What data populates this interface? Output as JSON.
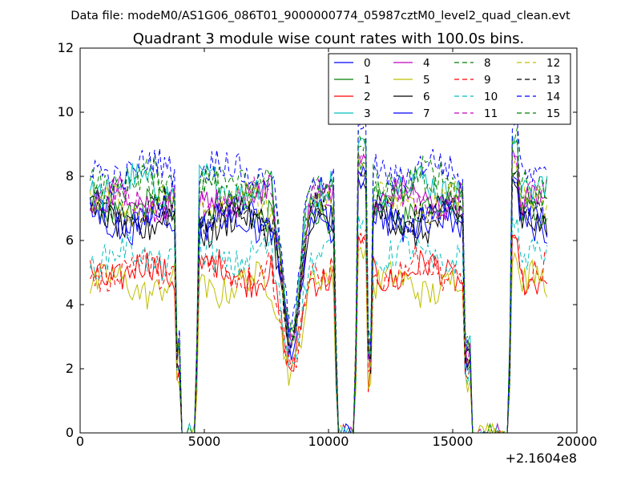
{
  "chart_data": {
    "type": "line",
    "suptitle": "Data file: modeM0/AS1G06_086T01_9000000774_05987cztM0_level2_quad_clean.evt",
    "title": "Quadrant 3 module wise count rates with 100.0s bins.",
    "xlabel": "",
    "ylabel": "",
    "x_offset_label": "+2.1604e8",
    "xlim": [
      0,
      20000
    ],
    "ylim": [
      0,
      12
    ],
    "x_ticks": [
      0,
      5000,
      10000,
      15000,
      20000
    ],
    "y_ticks": [
      0,
      2,
      4,
      6,
      8,
      10,
      12
    ],
    "grid": false,
    "legend": {
      "placement": "top-right",
      "columns": 4
    },
    "x_range_of_data": [
      400,
      18800
    ],
    "segments": [
      {
        "from": 400,
        "to": 3800,
        "level": "on"
      },
      {
        "from": 4100,
        "to": 4600,
        "level": "off"
      },
      {
        "from": 4800,
        "to": 7700,
        "level": "on"
      },
      {
        "from": 7800,
        "to": 9200,
        "level": "dip"
      },
      {
        "from": 9300,
        "to": 10200,
        "level": "on"
      },
      {
        "from": 10400,
        "to": 11000,
        "level": "off"
      },
      {
        "from": 11200,
        "to": 11500,
        "level": "spike"
      },
      {
        "from": 11800,
        "to": 15400,
        "level": "on"
      },
      {
        "from": 15800,
        "to": 17200,
        "level": "off"
      },
      {
        "from": 17400,
        "to": 17600,
        "level": "spike"
      },
      {
        "from": 17700,
        "to": 18800,
        "level": "on"
      }
    ],
    "series": [
      {
        "name": "0",
        "color": "#0000ff",
        "dash": "solid",
        "level": 6.8
      },
      {
        "name": "1",
        "color": "#008000",
        "dash": "solid",
        "level": 7.0
      },
      {
        "name": "2",
        "color": "#ff0000",
        "dash": "solid",
        "level": 5.0
      },
      {
        "name": "3",
        "color": "#00bfbf",
        "dash": "solid",
        "level": 7.7
      },
      {
        "name": "4",
        "color": "#bf00bf",
        "dash": "solid",
        "level": 7.3
      },
      {
        "name": "5",
        "color": "#bfbf00",
        "dash": "solid",
        "level": 4.6
      },
      {
        "name": "6",
        "color": "#000000",
        "dash": "solid",
        "level": 6.5
      },
      {
        "name": "7",
        "color": "#0000ff",
        "dash": "solid",
        "level": 6.6
      },
      {
        "name": "8",
        "color": "#008000",
        "dash": "dashed",
        "level": 7.9
      },
      {
        "name": "9",
        "color": "#ff0000",
        "dash": "dashed",
        "level": 5.1
      },
      {
        "name": "10",
        "color": "#00bfbf",
        "dash": "dashed",
        "level": 5.5
      },
      {
        "name": "11",
        "color": "#bf00bf",
        "dash": "dashed",
        "level": 7.2
      },
      {
        "name": "12",
        "color": "#bfbf00",
        "dash": "dashed",
        "level": 7.1
      },
      {
        "name": "13",
        "color": "#000000",
        "dash": "dashed",
        "level": 6.9
      },
      {
        "name": "14",
        "color": "#0000ff",
        "dash": "dashed",
        "level": 8.2
      },
      {
        "name": "15",
        "color": "#008000",
        "dash": "dashed",
        "level": 7.6
      }
    ]
  }
}
